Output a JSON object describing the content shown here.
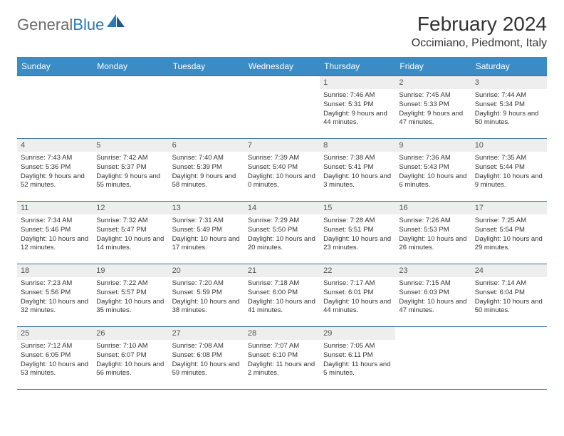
{
  "logo": {
    "part1": "General",
    "part2": "Blue"
  },
  "title": "February 2024",
  "location": "Occimiano, Piedmont, Italy",
  "colors": {
    "header_bg": "#3b8bc4",
    "header_text": "#ffffff",
    "daynum_bg": "#eeeeee",
    "border": "#3b6fa8",
    "logo_gray": "#6b6b6b",
    "logo_blue": "#2a7ab8"
  },
  "weekdays": [
    "Sunday",
    "Monday",
    "Tuesday",
    "Wednesday",
    "Thursday",
    "Friday",
    "Saturday"
  ],
  "weeks": [
    [
      null,
      null,
      null,
      null,
      {
        "n": "1",
        "sr": "7:46 AM",
        "ss": "5:31 PM",
        "dl": "9 hours and 44 minutes."
      },
      {
        "n": "2",
        "sr": "7:45 AM",
        "ss": "5:33 PM",
        "dl": "9 hours and 47 minutes."
      },
      {
        "n": "3",
        "sr": "7:44 AM",
        "ss": "5:34 PM",
        "dl": "9 hours and 50 minutes."
      }
    ],
    [
      {
        "n": "4",
        "sr": "7:43 AM",
        "ss": "5:36 PM",
        "dl": "9 hours and 52 minutes."
      },
      {
        "n": "5",
        "sr": "7:42 AM",
        "ss": "5:37 PM",
        "dl": "9 hours and 55 minutes."
      },
      {
        "n": "6",
        "sr": "7:40 AM",
        "ss": "5:39 PM",
        "dl": "9 hours and 58 minutes."
      },
      {
        "n": "7",
        "sr": "7:39 AM",
        "ss": "5:40 PM",
        "dl": "10 hours and 0 minutes."
      },
      {
        "n": "8",
        "sr": "7:38 AM",
        "ss": "5:41 PM",
        "dl": "10 hours and 3 minutes."
      },
      {
        "n": "9",
        "sr": "7:36 AM",
        "ss": "5:43 PM",
        "dl": "10 hours and 6 minutes."
      },
      {
        "n": "10",
        "sr": "7:35 AM",
        "ss": "5:44 PM",
        "dl": "10 hours and 9 minutes."
      }
    ],
    [
      {
        "n": "11",
        "sr": "7:34 AM",
        "ss": "5:46 PM",
        "dl": "10 hours and 12 minutes."
      },
      {
        "n": "12",
        "sr": "7:32 AM",
        "ss": "5:47 PM",
        "dl": "10 hours and 14 minutes."
      },
      {
        "n": "13",
        "sr": "7:31 AM",
        "ss": "5:49 PM",
        "dl": "10 hours and 17 minutes."
      },
      {
        "n": "14",
        "sr": "7:29 AM",
        "ss": "5:50 PM",
        "dl": "10 hours and 20 minutes."
      },
      {
        "n": "15",
        "sr": "7:28 AM",
        "ss": "5:51 PM",
        "dl": "10 hours and 23 minutes."
      },
      {
        "n": "16",
        "sr": "7:26 AM",
        "ss": "5:53 PM",
        "dl": "10 hours and 26 minutes."
      },
      {
        "n": "17",
        "sr": "7:25 AM",
        "ss": "5:54 PM",
        "dl": "10 hours and 29 minutes."
      }
    ],
    [
      {
        "n": "18",
        "sr": "7:23 AM",
        "ss": "5:56 PM",
        "dl": "10 hours and 32 minutes."
      },
      {
        "n": "19",
        "sr": "7:22 AM",
        "ss": "5:57 PM",
        "dl": "10 hours and 35 minutes."
      },
      {
        "n": "20",
        "sr": "7:20 AM",
        "ss": "5:59 PM",
        "dl": "10 hours and 38 minutes."
      },
      {
        "n": "21",
        "sr": "7:18 AM",
        "ss": "6:00 PM",
        "dl": "10 hours and 41 minutes."
      },
      {
        "n": "22",
        "sr": "7:17 AM",
        "ss": "6:01 PM",
        "dl": "10 hours and 44 minutes."
      },
      {
        "n": "23",
        "sr": "7:15 AM",
        "ss": "6:03 PM",
        "dl": "10 hours and 47 minutes."
      },
      {
        "n": "24",
        "sr": "7:14 AM",
        "ss": "6:04 PM",
        "dl": "10 hours and 50 minutes."
      }
    ],
    [
      {
        "n": "25",
        "sr": "7:12 AM",
        "ss": "6:05 PM",
        "dl": "10 hours and 53 minutes."
      },
      {
        "n": "26",
        "sr": "7:10 AM",
        "ss": "6:07 PM",
        "dl": "10 hours and 56 minutes."
      },
      {
        "n": "27",
        "sr": "7:08 AM",
        "ss": "6:08 PM",
        "dl": "10 hours and 59 minutes."
      },
      {
        "n": "28",
        "sr": "7:07 AM",
        "ss": "6:10 PM",
        "dl": "11 hours and 2 minutes."
      },
      {
        "n": "29",
        "sr": "7:05 AM",
        "ss": "6:11 PM",
        "dl": "11 hours and 5 minutes."
      },
      null,
      null
    ]
  ],
  "labels": {
    "sunrise": "Sunrise: ",
    "sunset": "Sunset: ",
    "daylight": "Daylight: "
  }
}
